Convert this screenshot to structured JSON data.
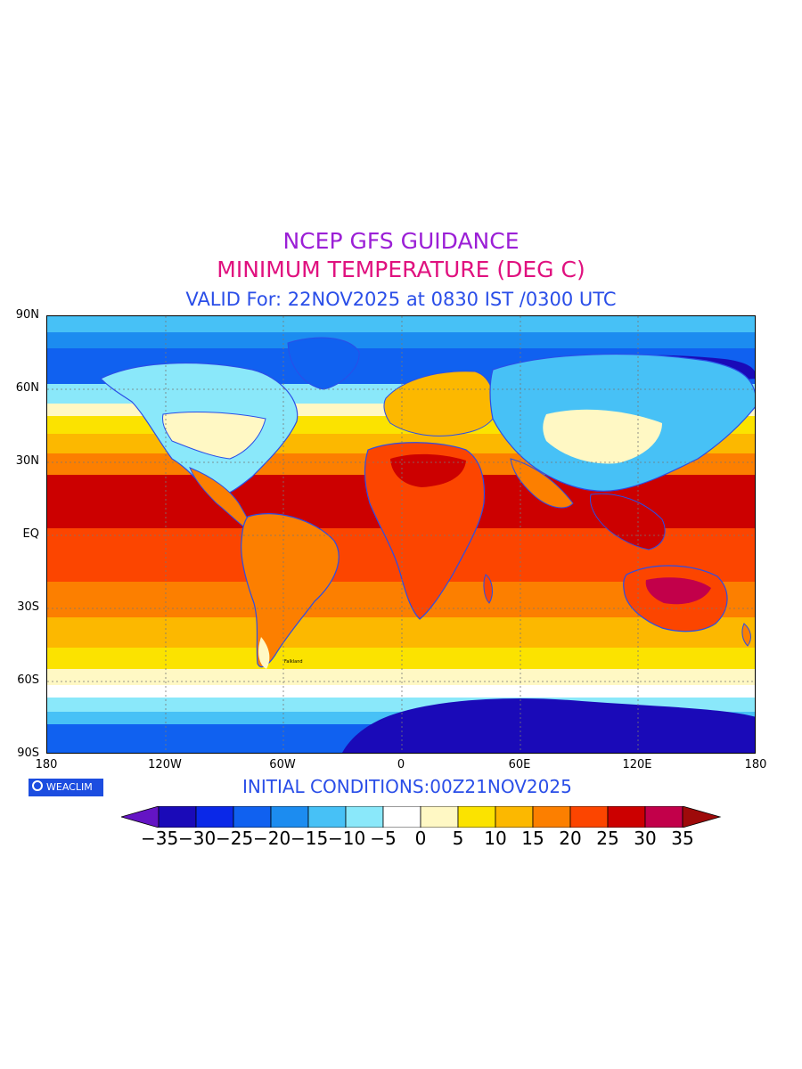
{
  "header": {
    "line1": "NCEP GFS GUIDANCE",
    "line2": "MINIMUM TEMPERATURE (DEG C)",
    "line3": "VALID For: 22NOV2025 at 0830 IST /0300 UTC"
  },
  "axes": {
    "y_ticks": [
      "90N",
      "60N",
      "30N",
      "EQ",
      "30S",
      "60S",
      "90S"
    ],
    "x_ticks": [
      "180",
      "120W",
      "60W",
      "0",
      "60E",
      "120E",
      "180"
    ]
  },
  "footer": {
    "logo_text": "WEACLIM",
    "initial_conditions": "INITIAL CONDITIONS:00Z21NOV2025"
  },
  "colorbar": {
    "labels": [
      "-35",
      "-30",
      "-25",
      "-20",
      "-15",
      "-10",
      "-5",
      "0",
      "5",
      "10",
      "15",
      "20",
      "25",
      "30",
      "35"
    ],
    "colors": [
      "#1a0ab8",
      "#0a28e8",
      "#1061f0",
      "#1c8cf0",
      "#47c1f6",
      "#8ae8fa",
      "#ffffff",
      "#fff8c4",
      "#fbe300",
      "#fcb800",
      "#fc7f00",
      "#fc4500",
      "#cc0000",
      "#c2004a"
    ],
    "under_color": "#6414c4",
    "over_color": "#9e0a0a"
  },
  "map": {
    "station_labels": [
      "Falkland"
    ]
  }
}
